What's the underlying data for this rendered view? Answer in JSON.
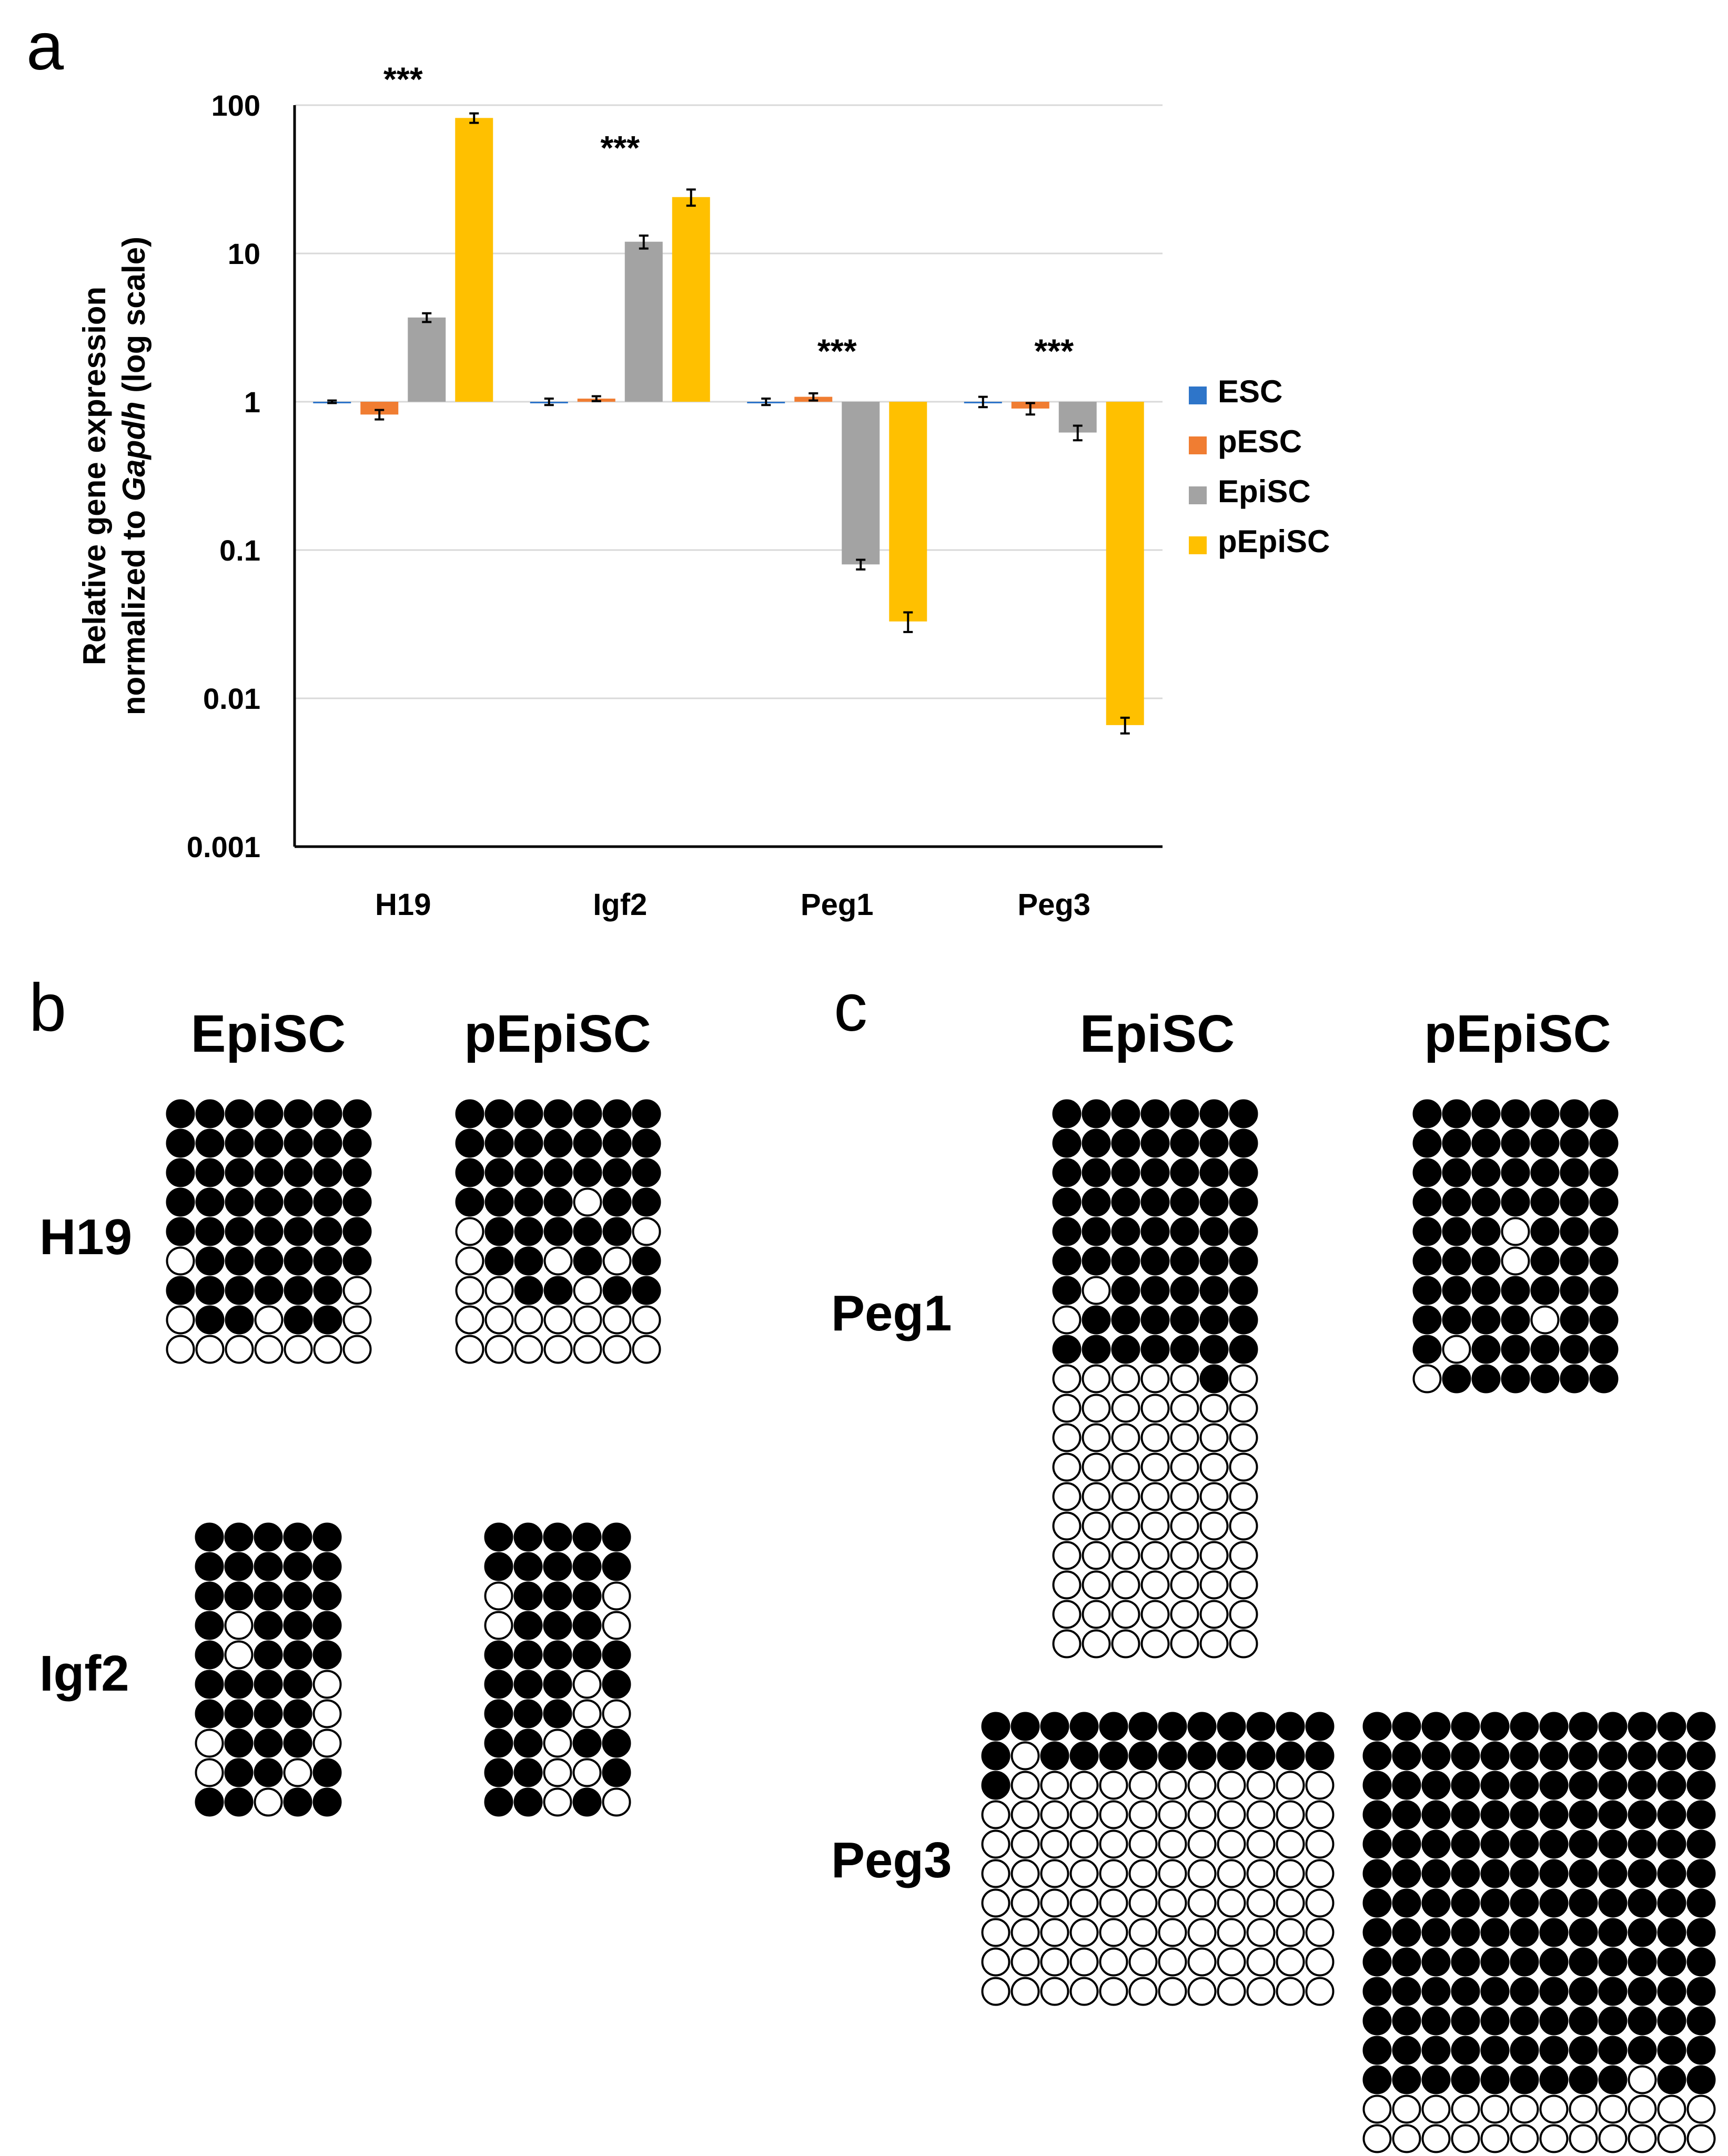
{
  "panel_labels": {
    "a": "a",
    "b": "b",
    "c": "c"
  },
  "colors": {
    "ESC": "#2e75c9",
    "pESC": "#f07d32",
    "EpiSC": "#a3a3a3",
    "pEpiSC": "#ffc000",
    "methylated": "#000000",
    "unmethylated": "#ffffff"
  },
  "chart_data": {
    "type": "bar",
    "yscale": "log",
    "ylim": [
      0.001,
      100
    ],
    "title": "",
    "xlabel": "",
    "ylabel_line1": "Relative gene expression",
    "ylabel_line2_prefix": "normalized to ",
    "ylabel_line2_italic": "Gapdh",
    "ylabel_line2_suffix": " (log scale)",
    "yticks": [
      {
        "value": 100,
        "label": "100"
      },
      {
        "value": 10,
        "label": "10"
      },
      {
        "value": 1,
        "label": "1"
      },
      {
        "value": 0.1,
        "label": "0.1"
      },
      {
        "value": 0.01,
        "label": "0.01"
      },
      {
        "value": 0.001,
        "label": "0.001"
      }
    ],
    "categories": [
      "H19",
      "Igf2",
      "Peg1",
      "Peg3"
    ],
    "baseline": 1,
    "series": [
      {
        "name": "ESC",
        "values": [
          1.0,
          1.0,
          1.0,
          1.0
        ],
        "errors": [
          0.02,
          0.05,
          0.05,
          0.08
        ]
      },
      {
        "name": "pESC",
        "values": [
          0.82,
          1.05,
          1.08,
          0.9
        ],
        "errors": [
          0.06,
          0.04,
          0.06,
          0.08
        ]
      },
      {
        "name": "EpiSC",
        "values": [
          3.7,
          12.0,
          0.08,
          0.62
        ],
        "errors": [
          0.25,
          1.2,
          0.006,
          0.07
        ]
      },
      {
        "name": "pEpiSC",
        "values": [
          82,
          24,
          0.033,
          0.0066
        ],
        "errors": [
          6,
          3,
          0.005,
          0.0008
        ]
      }
    ],
    "significance": [
      {
        "category": "H19",
        "label": "***",
        "value": 160
      },
      {
        "category": "Igf2",
        "label": "***",
        "value": 55
      },
      {
        "category": "Peg1",
        "label": "***",
        "value": 2.35
      },
      {
        "category": "Peg3",
        "label": "***",
        "value": 2.35
      }
    ],
    "legend": {
      "position": "right",
      "entries": [
        "ESC",
        "pESC",
        "EpiSC",
        "pEpiSC"
      ]
    }
  },
  "methylation": {
    "panel_b": {
      "columns": [
        "EpiSC",
        "pEpiSC"
      ],
      "genes": [
        {
          "name": "H19",
          "EpiSC": [
            "1111111",
            "1111111",
            "1111111",
            "1111111",
            "1111111",
            "0111111",
            "1111110",
            "0110110",
            "0000000"
          ],
          "pEpiSC": [
            "1111111",
            "1111111",
            "1111111",
            "1111011",
            "0111110",
            "0110101",
            "0011011",
            "0000000",
            "0000000"
          ]
        },
        {
          "name": "Igf2",
          "EpiSC": [
            "11111",
            "11111",
            "11111",
            "10111",
            "10111",
            "11110",
            "11110",
            "01110",
            "01101",
            "11011"
          ],
          "pEpiSC": [
            "11111",
            "11111",
            "01110",
            "01110",
            "11111",
            "11101",
            "11100",
            "11011",
            "11001",
            "11010"
          ]
        }
      ]
    },
    "panel_c": {
      "columns": [
        "EpiSC",
        "pEpiSC"
      ],
      "genes": [
        {
          "name": "Peg1",
          "EpiSC": [
            "1111111",
            "1111111",
            "1111111",
            "1111111",
            "1111111",
            "1111111",
            "1011111",
            "0111111",
            "1111111",
            "0000010",
            "0000000",
            "0000000",
            "0000000",
            "0000000",
            "0000000",
            "0000000",
            "0000000",
            "0000000",
            "0000000"
          ],
          "pEpiSC": [
            "1111111",
            "1111111",
            "1111111",
            "1111111",
            "1110111",
            "1110111",
            "1111111",
            "1111011",
            "1011111",
            "0111111"
          ]
        },
        {
          "name": "Peg3",
          "EpiSC": [
            "111111111111",
            "101111111111",
            "100000000000",
            "000000000000",
            "000000000000",
            "000000000000",
            "000000000000",
            "000000000000",
            "000000000000",
            "000000000000"
          ],
          "pEpiSC": [
            "111111111111",
            "111111111111",
            "111111111111",
            "111111111111",
            "111111111111",
            "111111111111",
            "111111111111",
            "111111111111",
            "111111111111",
            "111111111111",
            "111111111111",
            "111111111111",
            "111111111011",
            "000000000000",
            "000000000000"
          ]
        }
      ]
    }
  }
}
